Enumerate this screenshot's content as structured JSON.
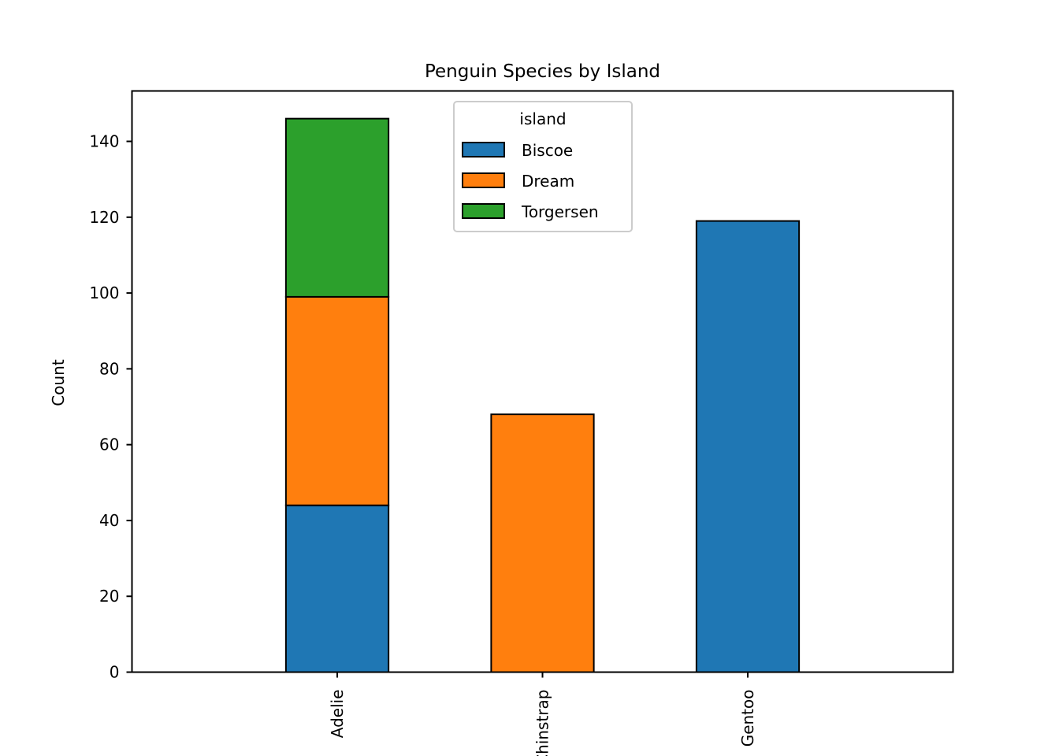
{
  "chart_data": {
    "type": "bar",
    "stacked": true,
    "title": "Penguin Species by Island",
    "xlabel": "",
    "ylabel": "Count",
    "categories": [
      "Adelie",
      "Chinstrap",
      "Gentoo"
    ],
    "series": [
      {
        "name": "Biscoe",
        "values": [
          44,
          0,
          119
        ],
        "color": "#1f77b4"
      },
      {
        "name": "Dream",
        "values": [
          55,
          68,
          0
        ],
        "color": "#ff7f0e"
      },
      {
        "name": "Torgersen",
        "values": [
          47,
          0,
          0
        ],
        "color": "#2ca02c"
      }
    ],
    "ylim": [
      0,
      153.3
    ],
    "yticks": [
      0,
      20,
      40,
      60,
      80,
      100,
      120,
      140
    ],
    "grid": false,
    "legend": {
      "title": "island",
      "position": "upper center"
    },
    "bar_edge_color": "#000000"
  }
}
